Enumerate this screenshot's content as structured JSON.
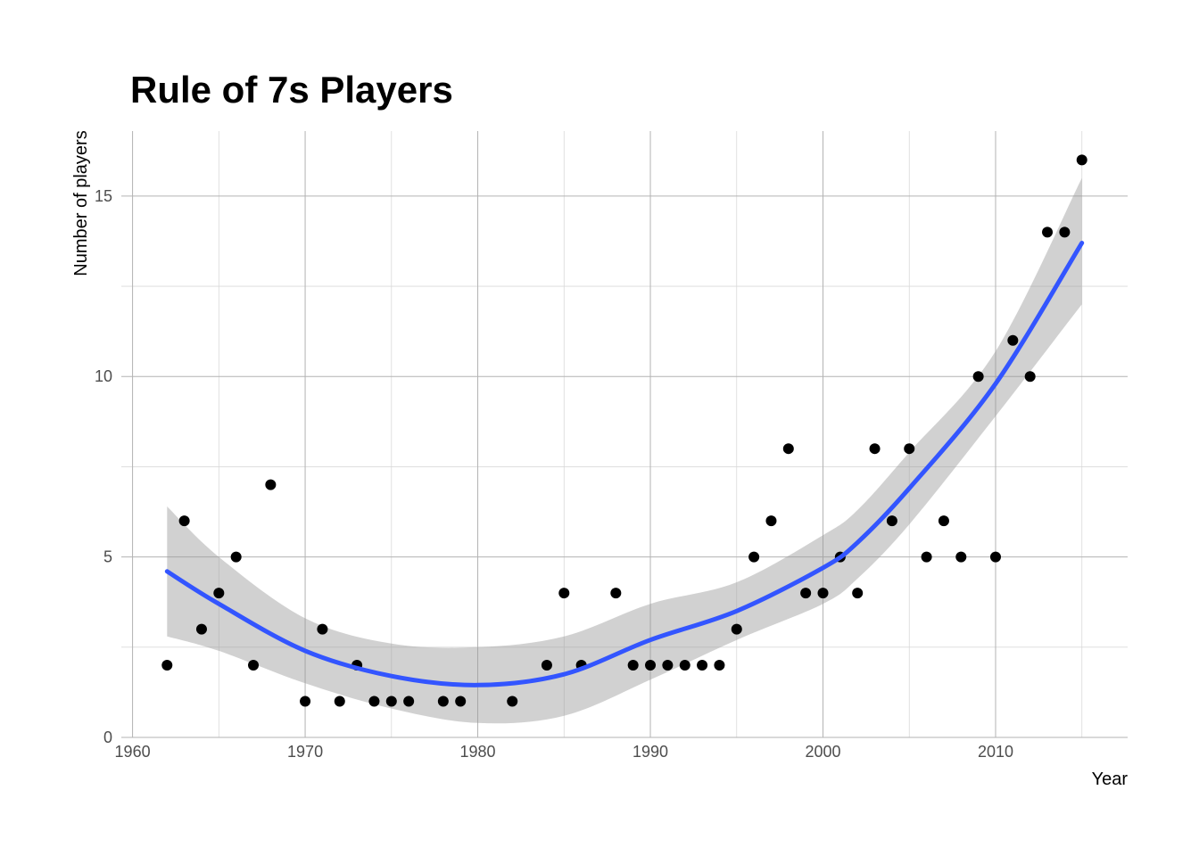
{
  "chart_data": {
    "type": "scatter",
    "title": "Rule of 7s Players",
    "xlabel": "Year",
    "ylabel": "Number of players",
    "xlim": [
      1959.35,
      2017.65
    ],
    "ylim": [
      0,
      16.8
    ],
    "x_ticks": [
      1960,
      1970,
      1980,
      1990,
      2000,
      2010
    ],
    "x_minor_ticks": [
      1965,
      1975,
      1985,
      1995,
      2005,
      2015
    ],
    "y_ticks": [
      0,
      5,
      10,
      15
    ],
    "y_minor_ticks": [
      2.5,
      7.5,
      12.5
    ],
    "x_tick_labels": [
      "1960",
      "1970",
      "1980",
      "1990",
      "2000",
      "2010"
    ],
    "y_tick_labels": [
      "0",
      "5",
      "10",
      "15"
    ],
    "grid": true,
    "legend": "none",
    "points": {
      "color": "#000000",
      "x": [
        1962,
        1963,
        1964,
        1965,
        1966,
        1967,
        1968,
        1970,
        1971,
        1972,
        1973,
        1974,
        1975,
        1976,
        1978,
        1979,
        1982,
        1984,
        1985,
        1986,
        1988,
        1989,
        1990,
        1991,
        1992,
        1993,
        1994,
        1995,
        1996,
        1997,
        1998,
        1999,
        2000,
        2001,
        2002,
        2003,
        2004,
        2005,
        2006,
        2007,
        2008,
        2009,
        2010,
        2011,
        2012,
        2013,
        2014,
        2015
      ],
      "y": [
        2,
        6,
        3,
        4,
        5,
        2,
        7,
        1,
        3,
        1,
        2,
        1,
        1,
        1,
        1,
        1,
        1,
        2,
        4,
        2,
        4,
        2,
        2,
        2,
        2,
        2,
        2,
        3,
        5,
        6,
        8,
        4,
        4,
        5,
        4,
        8,
        6,
        8,
        5,
        6,
        5,
        10,
        5,
        11,
        10,
        14,
        14,
        16
      ]
    },
    "smooth": {
      "method": "loess",
      "color": "#3355ff",
      "band_color": "#999999",
      "x": [
        1962,
        1965,
        1970,
        1975,
        1980,
        1985,
        1990,
        1995,
        2000,
        2002,
        2005,
        2010,
        2015
      ],
      "y": [
        4.6,
        3.7,
        2.4,
        1.7,
        1.45,
        1.75,
        2.7,
        3.5,
        4.7,
        5.4,
        6.9,
        9.8,
        13.7
      ],
      "lower": [
        2.8,
        2.4,
        1.5,
        0.8,
        0.4,
        0.6,
        1.6,
        2.7,
        3.7,
        4.4,
        5.9,
        8.9,
        12.0
      ],
      "upper": [
        6.4,
        5.0,
        3.3,
        2.6,
        2.5,
        2.8,
        3.7,
        4.3,
        5.6,
        6.3,
        7.9,
        10.7,
        15.5
      ]
    }
  }
}
